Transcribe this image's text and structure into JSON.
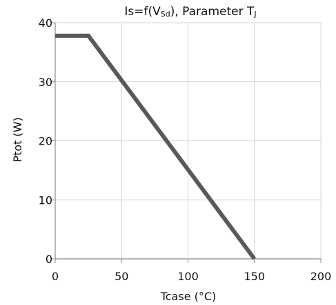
{
  "chart_data": {
    "type": "line",
    "title_parts": [
      {
        "text": "Is=f(V",
        "style": "main"
      },
      {
        "text": "Sd",
        "style": "sub"
      },
      {
        "text": "), Parameter T",
        "style": "main"
      },
      {
        "text": "J",
        "style": "sub"
      }
    ],
    "xlabel": "Tcase (°C)",
    "ylabel": "Ptot (W)",
    "xlim": [
      0,
      200
    ],
    "ylim": [
      0,
      40
    ],
    "xticks": [
      0,
      50,
      100,
      150,
      200
    ],
    "yticks": [
      0,
      10,
      20,
      30,
      40
    ],
    "grid": true,
    "series": [
      {
        "x": [
          0,
          25,
          150
        ],
        "y": [
          37.8,
          37.8,
          0
        ],
        "color": "#595959"
      }
    ]
  },
  "colors": {
    "grid": "#d4d4d4",
    "axis": "#8a8a8a",
    "line": "#595959"
  }
}
